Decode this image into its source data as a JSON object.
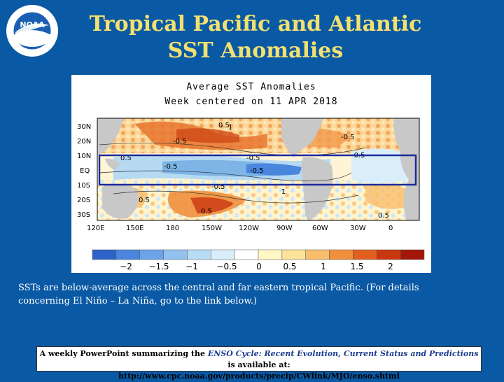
{
  "slide": {
    "title_line1": "Tropical Pacific and Atlantic",
    "title_line2": "SST Anomalies",
    "logo_text": "NOAA"
  },
  "map": {
    "title_line1": "Average SST Anomalies",
    "title_line2": "Week centered on 11 APR 2018",
    "lat_labels": [
      "30N",
      "20N",
      "10N",
      "EQ",
      "10S",
      "20S",
      "30S"
    ],
    "lon_labels": [
      "120E",
      "150E",
      "180",
      "150W",
      "120W",
      "90W",
      "60W",
      "30W",
      "0"
    ],
    "contour_labels": [
      "0.5",
      "-0.5",
      "0.5",
      "-0.5",
      "-0.5",
      "-0.5",
      "-0.5",
      "0.5",
      "0.5",
      "-0.5",
      "-0.5",
      "1",
      "0.5",
      "1"
    ],
    "colorbar": {
      "labels": [
        "−2",
        "−1.5",
        "−1",
        "−0.5",
        "0",
        "0.5",
        "1",
        "1.5",
        "2"
      ],
      "colors": [
        "#2b63c9",
        "#4a86dd",
        "#6da3e8",
        "#93c1ef",
        "#b9dcf5",
        "#d9eef9",
        "#ffffff",
        "#fff7c4",
        "#fde29a",
        "#f9be6c",
        "#f0903d",
        "#e2601f",
        "#c93710",
        "#a3170a"
      ]
    },
    "highlight_box_color": "#1c2b9c"
  },
  "body": {
    "text": "SSTs are below-average across the central and far eastern tropical Pacific. (For details concerning El Niño – La Niña, go to the link below.)"
  },
  "footer": {
    "prefix": "A weekly PowerPoint summarizing the ",
    "italic": "ENSO Cycle: Recent Evolution, Current Status and Predictions",
    "suffix": " is available at:",
    "url": "http://www.cpc.noaa.gov/products/precip/CWlink/MJO/enso.shtml"
  }
}
